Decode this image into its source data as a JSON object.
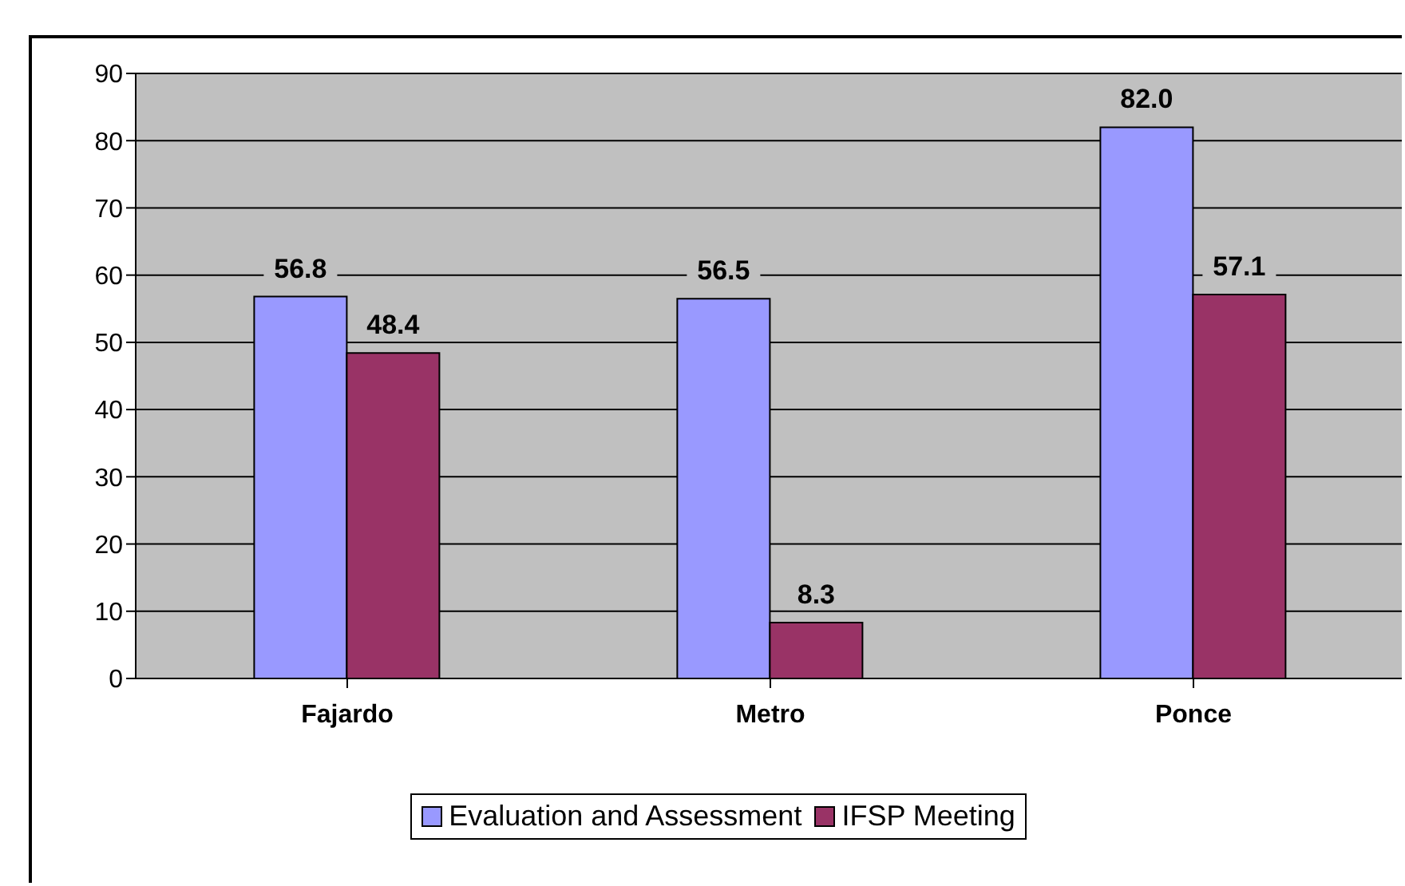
{
  "chart_data": {
    "type": "bar",
    "categories": [
      "Fajardo",
      "Metro",
      "Ponce"
    ],
    "series": [
      {
        "name": "Evaluation and Assessment",
        "color": "#9999ff",
        "values": [
          56.8,
          56.5,
          82.0
        ]
      },
      {
        "name": "IFSP Meeting",
        "color": "#993366",
        "values": [
          48.4,
          8.3,
          57.1
        ]
      }
    ],
    "value_labels": [
      [
        "56.8",
        "56.5",
        "82.0"
      ],
      [
        "48.4",
        "8.3",
        "57.1"
      ]
    ],
    "ylim": [
      0,
      90
    ],
    "yticks": [
      0,
      10,
      20,
      30,
      40,
      50,
      60,
      70,
      80,
      90
    ],
    "grid": "y",
    "legend": "bottom"
  }
}
